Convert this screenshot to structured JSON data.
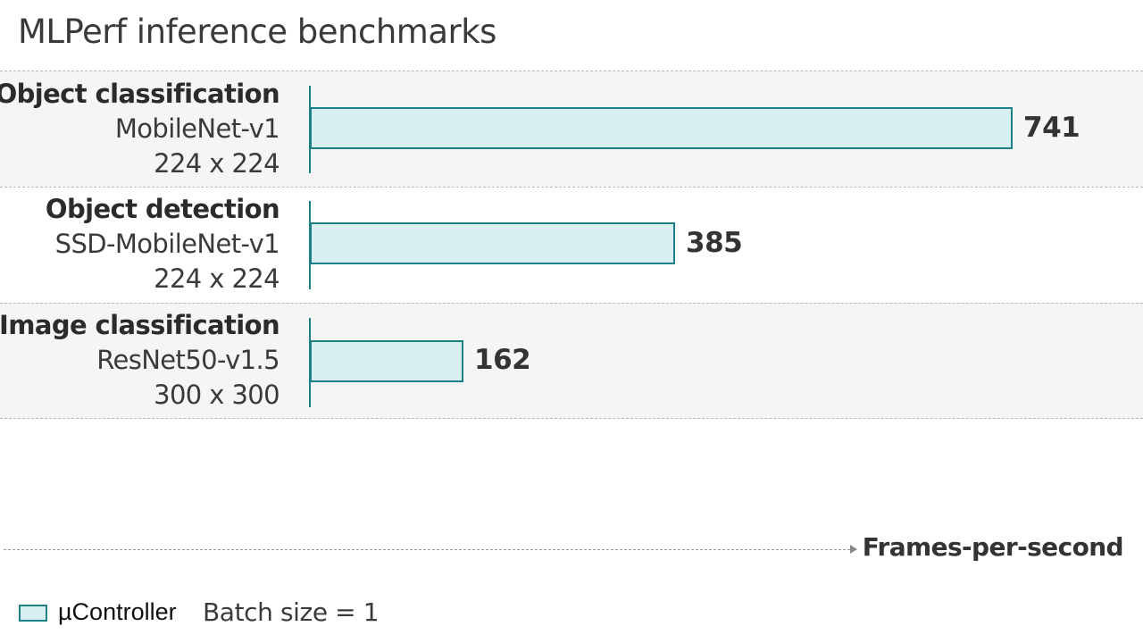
{
  "chart_data": {
    "type": "bar",
    "orientation": "horizontal",
    "title": "MLPerf inference benchmarks",
    "categories": [
      {
        "name": "Object classification",
        "model": "MobileNet-v1",
        "resolution": "224 x 224"
      },
      {
        "name": "Object detection",
        "model": "SSD-MobileNet-v1",
        "resolution": "224 x 224"
      },
      {
        "name": "Image classification",
        "model": "ResNet50-v1.5",
        "resolution": "300 x 300"
      }
    ],
    "series": [
      {
        "name": "µController",
        "values": [
          741,
          385,
          162
        ],
        "color": "#d8eff2",
        "border": "#1f7f86"
      }
    ],
    "xlabel": "Frames-per-second",
    "xlim": [
      0,
      741
    ],
    "grid": false,
    "legend": {
      "position": "bottom-left",
      "note": "Batch size = 1"
    }
  }
}
